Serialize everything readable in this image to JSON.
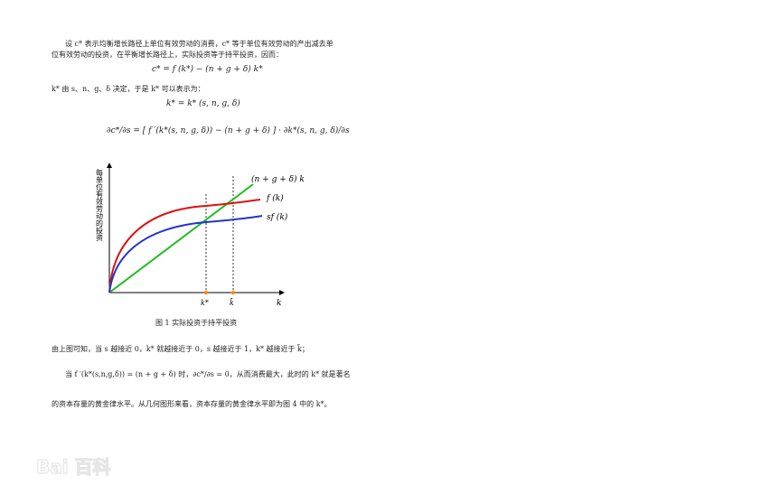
{
  "paragraphs": {
    "p1_line1": "设 c* 表示均衡增长路径上单位有效劳动的消费，c* 等于单位有效劳动的产出减去单",
    "p1_line2": "位有效劳动的投资，在平衡增长路径上，实际投资等于持平投资，因而：",
    "eq1": "c* = f (k*) − (n + g + δ) k*",
    "p2": "k* 由 s、n、g、δ 决定，于是 k* 可以表示为：",
    "eq2": "k* = k* (s, n, g, δ)",
    "eq3": "∂c*/∂s = [ f ′(k*(s, n, g, δ)) − (n + g + δ) ] · ∂k*(s, n, g, δ)/∂s",
    "p3": "由上图可知，当 s 越接近 0，k* 就越接近于 0，s 越接近于 1，k* 越接近于 k̃；",
    "p4": "当 f ′(k*(s,n,g,δ)) = (n + g + δ) 时，∂c*/∂s = 0，从而消费最大，此时的 k* 就是著名",
    "p5": "的资本存量的黄金律水平。从几何图形来看，资本存量的黄金律水平即为图 4 中的 k*。"
  },
  "figure": {
    "caption": "图 1 实际投资于持平投资",
    "ylabel": "每单位有效劳动的投资",
    "xlabel": "k",
    "curve_labels": {
      "line": "(n + g + δ) k",
      "f": "f (k)",
      "sf": "sf (k)"
    },
    "tick_labels": {
      "kstar": "k*",
      "ktilde": "k̃"
    },
    "colors": {
      "f": "#dd1111",
      "sf": "#2233cc",
      "line": "#22bb22",
      "marker": "#ff8800",
      "axis": "#000000"
    }
  },
  "chart_data": {
    "type": "line",
    "xlabel": "k",
    "ylabel": "每单位有效劳动的投资",
    "series": [
      {
        "name": "(n + g + δ) k",
        "type": "linear",
        "x": [
          0,
          0.44,
          0.66,
          1.1
        ],
        "y": [
          0,
          0.54,
          0.82,
          1.38
        ]
      },
      {
        "name": "f (k)",
        "type": "concave",
        "x": [
          0,
          0.05,
          0.2,
          0.44,
          0.66,
          1.2
        ],
        "y": [
          0,
          0.35,
          0.62,
          0.75,
          0.82,
          0.86
        ]
      },
      {
        "name": "sf (k)",
        "type": "concave",
        "x": [
          0,
          0.05,
          0.2,
          0.44,
          0.66,
          1.2
        ],
        "y": [
          0,
          0.25,
          0.45,
          0.54,
          0.6,
          0.63
        ]
      }
    ],
    "markers": [
      {
        "label": "k*",
        "x": 0.44
      },
      {
        "label": "k̃",
        "x": 0.66
      }
    ],
    "grid": false
  },
  "watermark": {
    "text": "Bai 百科"
  }
}
